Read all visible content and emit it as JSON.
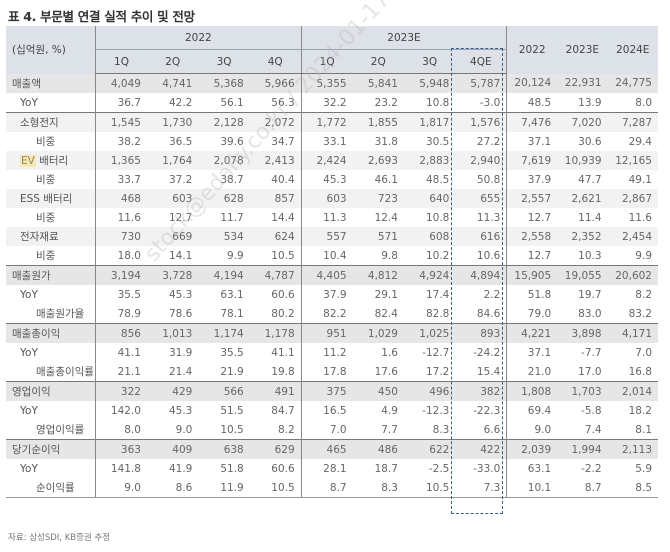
{
  "title": "표 4. 부문별 연결 실적 추이 및 전망",
  "header": {
    "unit": "(십억원, %)",
    "year_groups": [
      "2022",
      "2023E"
    ],
    "quarters": [
      "1Q",
      "2Q",
      "3Q",
      "4Q",
      "1Q",
      "2Q",
      "3Q",
      "4QE"
    ],
    "annual": [
      "2022",
      "2023E",
      "2024E"
    ]
  },
  "rows": [
    {
      "label": "매출액",
      "style": "main",
      "values": [
        "4,049",
        "4,741",
        "5,368",
        "5,966",
        "5,355",
        "5,841",
        "5,948",
        "5,787",
        "20,124",
        "22,931",
        "24,775"
      ]
    },
    {
      "label": "YoY",
      "style": "sub",
      "values": [
        "36.7",
        "42.2",
        "56.1",
        "56.3",
        "32.2",
        "23.2",
        "10.8",
        "-3.0",
        "48.5",
        "13.9",
        "8.0"
      ]
    },
    {
      "label": "소형전지",
      "style": "seg",
      "values": [
        "1,545",
        "1,730",
        "2,128",
        "2,072",
        "1,772",
        "1,855",
        "1,817",
        "1,576",
        "7,476",
        "7,020",
        "7,287"
      ]
    },
    {
      "label": "비중",
      "style": "sub2",
      "values": [
        "38.2",
        "36.5",
        "39.6",
        "34.7",
        "33.1",
        "31.8",
        "30.5",
        "27.2",
        "37.1",
        "30.6",
        "29.4"
      ]
    },
    {
      "label": "EV 배터리",
      "style": "seg",
      "ev": true,
      "values": [
        "1,365",
        "1,764",
        "2,078",
        "2,413",
        "2,424",
        "2,693",
        "2,883",
        "2,940",
        "7,619",
        "10,939",
        "12,165"
      ]
    },
    {
      "label": "비중",
      "style": "sub2",
      "values": [
        "33.7",
        "37.2",
        "38.7",
        "40.4",
        "45.3",
        "46.1",
        "48.5",
        "50.8",
        "37.9",
        "47.7",
        "49.1"
      ]
    },
    {
      "label": "ESS 배터리",
      "style": "seg",
      "values": [
        "468",
        "603",
        "628",
        "857",
        "603",
        "723",
        "640",
        "655",
        "2,557",
        "2,621",
        "2,867"
      ]
    },
    {
      "label": "비중",
      "style": "sub2",
      "values": [
        "11.6",
        "12.7",
        "11.7",
        "14.4",
        "11.3",
        "12.4",
        "10.8",
        "11.3",
        "12.7",
        "11.4",
        "11.6"
      ]
    },
    {
      "label": "전자재료",
      "style": "seg",
      "values": [
        "730",
        "669",
        "534",
        "624",
        "557",
        "571",
        "608",
        "616",
        "2,558",
        "2,352",
        "2,454"
      ]
    },
    {
      "label": "비중",
      "style": "sub2",
      "values": [
        "18.0",
        "14.1",
        "9.9",
        "10.5",
        "10.4",
        "9.8",
        "10.2",
        "10.6",
        "12.7",
        "10.3",
        "9.9"
      ]
    },
    {
      "label": "매출원가",
      "style": "main",
      "values": [
        "3,194",
        "3,728",
        "4,194",
        "4,787",
        "4,405",
        "4,812",
        "4,924",
        "4,894",
        "15,905",
        "19,055",
        "20,602"
      ]
    },
    {
      "label": "YoY",
      "style": "sub",
      "values": [
        "35.5",
        "45.3",
        "63.1",
        "60.6",
        "37.9",
        "29.1",
        "17.4",
        "2.2",
        "51.8",
        "19.7",
        "8.2"
      ]
    },
    {
      "label": "매출원가율",
      "style": "sub2",
      "values": [
        "78.9",
        "78.6",
        "78.1",
        "80.2",
        "82.2",
        "82.4",
        "82.8",
        "84.6",
        "79.0",
        "83.0",
        "83.2"
      ]
    },
    {
      "label": "매출총이익",
      "style": "main",
      "values": [
        "856",
        "1,013",
        "1,174",
        "1,178",
        "951",
        "1,029",
        "1,025",
        "893",
        "4,221",
        "3,898",
        "4,171"
      ]
    },
    {
      "label": "YoY",
      "style": "sub",
      "values": [
        "41.1",
        "31.9",
        "35.5",
        "41.1",
        "11.2",
        "1.6",
        "-12.7",
        "-24.2",
        "37.1",
        "-7.7",
        "7.0"
      ]
    },
    {
      "label": "매출총이익률",
      "style": "sub2",
      "values": [
        "21.1",
        "21.4",
        "21.9",
        "19.8",
        "17.8",
        "17.6",
        "17.2",
        "15.4",
        "21.0",
        "17.0",
        "16.8"
      ]
    },
    {
      "label": "영업이익",
      "style": "main",
      "values": [
        "322",
        "429",
        "566",
        "491",
        "375",
        "450",
        "496",
        "382",
        "1,808",
        "1,703",
        "2,014"
      ]
    },
    {
      "label": "YoY",
      "style": "sub",
      "values": [
        "142.0",
        "45.3",
        "51.5",
        "84.7",
        "16.5",
        "4.9",
        "-12.3",
        "-22.3",
        "69.4",
        "-5.8",
        "18.2"
      ]
    },
    {
      "label": "영업이익률",
      "style": "sub2",
      "values": [
        "8.0",
        "9.0",
        "10.5",
        "8.2",
        "7.0",
        "7.7",
        "8.3",
        "6.6",
        "9.0",
        "7.4",
        "8.1"
      ]
    },
    {
      "label": "당기순이익",
      "style": "main",
      "values": [
        "363",
        "409",
        "638",
        "629",
        "465",
        "486",
        "622",
        "422",
        "2,039",
        "1,994",
        "2,113"
      ]
    },
    {
      "label": "YoY",
      "style": "sub",
      "values": [
        "141.8",
        "41.9",
        "51.8",
        "60.6",
        "28.1",
        "18.7",
        "-2.5",
        "-33.0",
        "63.1",
        "-2.2",
        "5.9"
      ]
    },
    {
      "label": "순이익률",
      "style": "sub2",
      "values": [
        "9.0",
        "8.6",
        "11.9",
        "10.5",
        "8.7",
        "8.3",
        "10.5",
        "7.3",
        "10.1",
        "8.7",
        "8.5"
      ]
    }
  ],
  "source": "자료: 삼성SDI, KB증권 추정",
  "watermark": "stock@edaily.co.kr / 2024-01-17 07:21"
}
